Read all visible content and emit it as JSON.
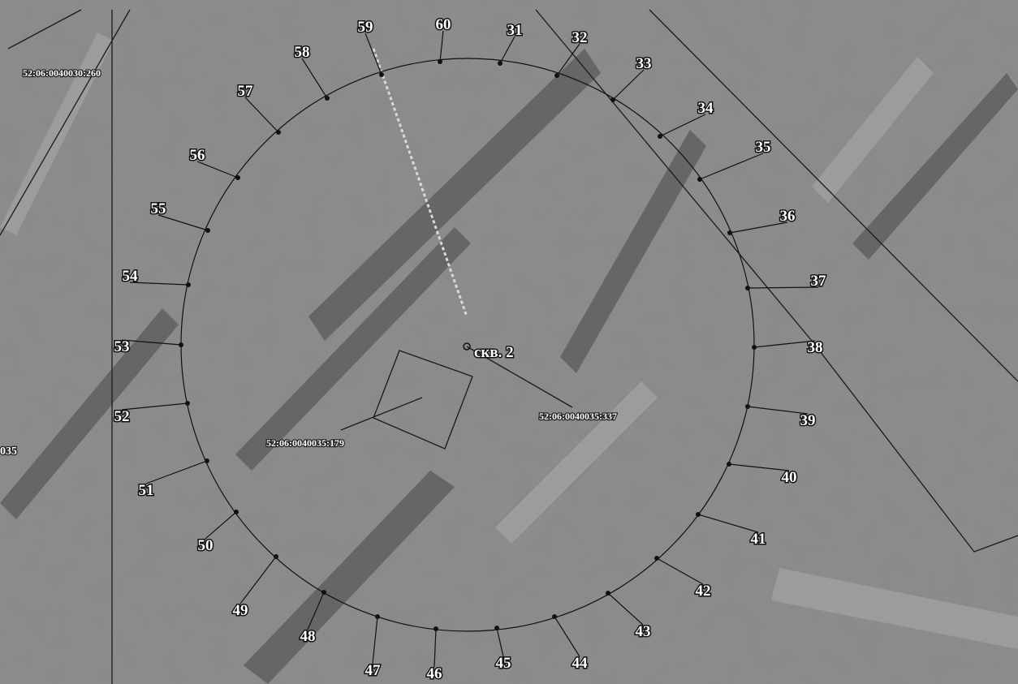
{
  "points": [
    "59",
    "60",
    "31",
    "32",
    "33",
    "34",
    "35",
    "36",
    "37",
    "38",
    "39",
    "40",
    "41",
    "42",
    "43",
    "44",
    "45",
    "46",
    "47",
    "48",
    "49",
    "50",
    "51",
    "52",
    "53",
    "54",
    "55",
    "56",
    "57",
    "58"
  ],
  "well": "скв. 2",
  "parcels": [
    "52:06:0040030:260",
    "52:06:0040035:337",
    "52:06:0040035:179",
    "035"
  ]
}
